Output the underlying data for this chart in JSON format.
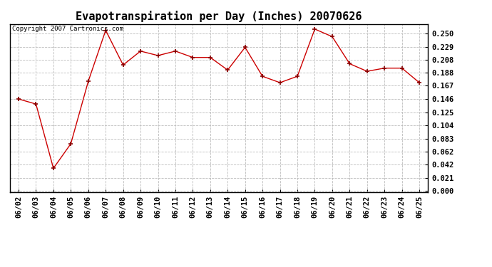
{
  "title": "Evapotranspiration per Day (Inches) 20070626",
  "copyright_text": "Copyright 2007 Cartronics.com",
  "dates": [
    "06/02",
    "06/03",
    "06/04",
    "06/05",
    "06/06",
    "06/07",
    "06/08",
    "06/09",
    "06/10",
    "06/11",
    "06/12",
    "06/13",
    "06/14",
    "06/15",
    "06/16",
    "06/17",
    "06/18",
    "06/19",
    "06/20",
    "06/21",
    "06/22",
    "06/23",
    "06/24",
    "06/25"
  ],
  "values": [
    0.146,
    0.138,
    0.036,
    0.075,
    0.174,
    0.255,
    0.2,
    0.222,
    0.215,
    0.222,
    0.212,
    0.212,
    0.192,
    0.228,
    0.182,
    0.172,
    0.182,
    0.257,
    0.245,
    0.202,
    0.19,
    0.195,
    0.195,
    0.172
  ],
  "line_color": "#cc0000",
  "marker": "+",
  "marker_color": "#880000",
  "bg_color": "#ffffff",
  "grid_color": "#bbbbbb",
  "yticks": [
    0.0,
    0.021,
    0.042,
    0.062,
    0.083,
    0.104,
    0.125,
    0.146,
    0.167,
    0.188,
    0.208,
    0.229,
    0.25
  ],
  "ylim": [
    -0.002,
    0.265
  ],
  "title_fontsize": 11,
  "tick_fontsize": 7.5,
  "copyright_fontsize": 6.5
}
